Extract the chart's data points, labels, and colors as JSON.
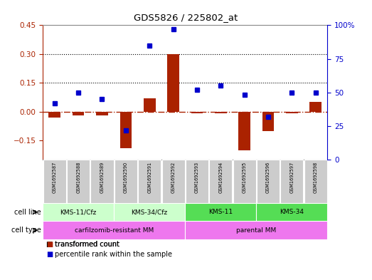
{
  "title": "GDS5826 / 225802_at",
  "samples": [
    "GSM1692587",
    "GSM1692588",
    "GSM1692589",
    "GSM1692590",
    "GSM1692591",
    "GSM1692592",
    "GSM1692593",
    "GSM1692594",
    "GSM1692595",
    "GSM1692596",
    "GSM1692597",
    "GSM1692598"
  ],
  "transformed_count": [
    -0.03,
    -0.02,
    -0.02,
    -0.19,
    0.07,
    0.3,
    -0.01,
    -0.01,
    -0.2,
    -0.1,
    -0.01,
    0.05
  ],
  "percentile_rank": [
    42,
    50,
    45,
    22,
    85,
    97,
    52,
    55,
    48,
    32,
    50,
    50
  ],
  "cell_line_groups": [
    {
      "label": "KMS-11/Cfz",
      "start": 0,
      "end": 3,
      "color": "#ccffcc"
    },
    {
      "label": "KMS-34/Cfz",
      "start": 3,
      "end": 6,
      "color": "#ccffcc"
    },
    {
      "label": "KMS-11",
      "start": 6,
      "end": 9,
      "color": "#55dd55"
    },
    {
      "label": "KMS-34",
      "start": 9,
      "end": 12,
      "color": "#55dd55"
    }
  ],
  "cell_type_color": "#ee77ee",
  "cell_type_groups": [
    {
      "label": "carfilzomib-resistant MM",
      "start": 0,
      "end": 6
    },
    {
      "label": "parental MM",
      "start": 6,
      "end": 12
    }
  ],
  "ylim_left": [
    -0.25,
    0.45
  ],
  "ylim_right": [
    0,
    100
  ],
  "yticks_left": [
    -0.15,
    0.0,
    0.15,
    0.3,
    0.45
  ],
  "yticks_right": [
    0,
    25,
    50,
    75,
    100
  ],
  "hlines": [
    0.15,
    0.3
  ],
  "bar_color": "#aa2200",
  "dot_color": "#0000cc",
  "zeroline_color": "#aa2200",
  "sample_box_color": "#cccccc",
  "border_color": "#888888"
}
